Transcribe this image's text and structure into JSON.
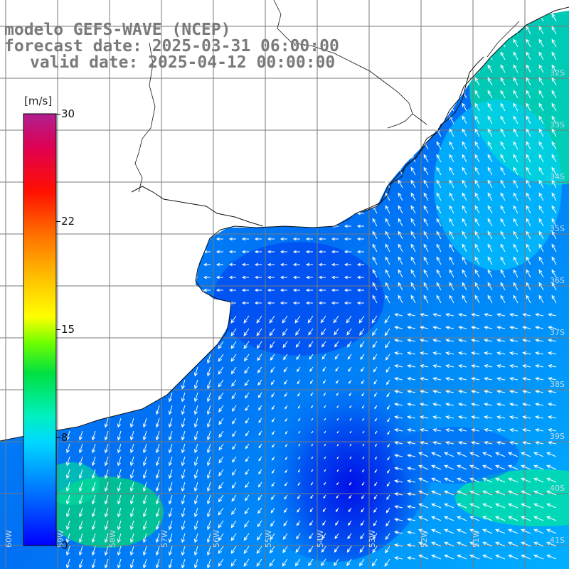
{
  "title": {
    "line1": "modelo GEFS-WAVE (NCEP)",
    "line2": "forecast date: 2025-03-31 06:00:00",
    "line3": "valid date: 2025-04-12 00:00:00"
  },
  "colorbar": {
    "unit": "[m/s]",
    "ticks": [
      {
        "label": "30",
        "value": 30
      },
      {
        "label": "22",
        "value": 22
      },
      {
        "label": "15",
        "value": 15
      },
      {
        "label": "8",
        "value": 8
      },
      {
        "label": "0",
        "value": 0
      }
    ],
    "range": [
      0,
      30
    ],
    "colors": [
      "#0000ff",
      "#0080ff",
      "#00e0ff",
      "#00ff80",
      "#40ff00",
      "#c0ff00",
      "#ffff00",
      "#ffc000",
      "#ff8000",
      "#ff2000",
      "#ff0000",
      "#e00060",
      "#b0208a"
    ]
  },
  "lat_labels": [
    "32S",
    "33S",
    "34S",
    "35S",
    "36S",
    "37S",
    "38S",
    "39S",
    "40S",
    "41S"
  ],
  "lon_labels": [
    "60W",
    "59W",
    "58W",
    "57W",
    "56W",
    "55W",
    "54W",
    "53W",
    "52W",
    "51W"
  ],
  "chart_data": {
    "type": "heatmap",
    "variable": "wind speed",
    "unit": "m/s",
    "color_range": [
      0,
      30
    ],
    "vector_field": "wind arrows",
    "grid": true
  }
}
